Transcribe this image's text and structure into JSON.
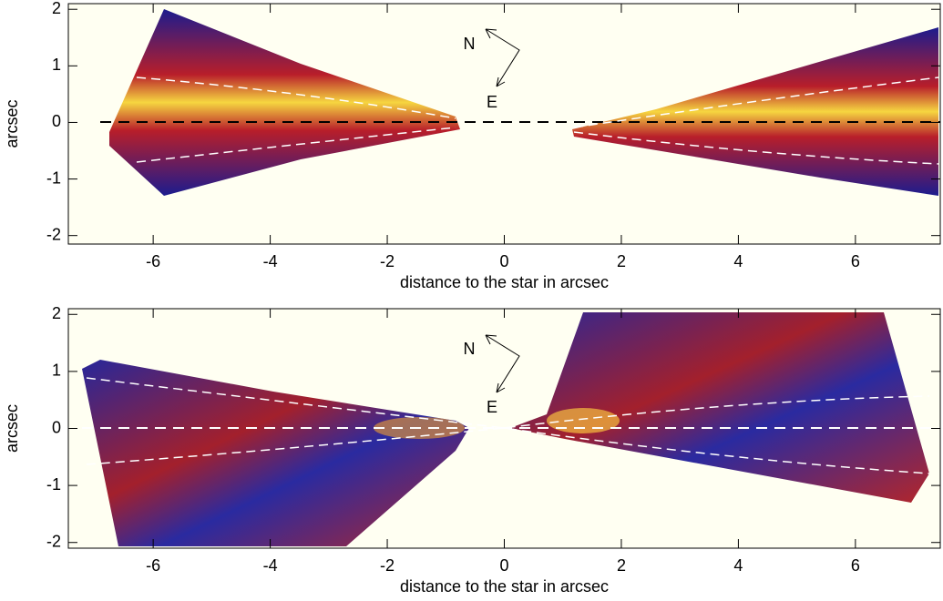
{
  "chart_data": [
    {
      "type": "image",
      "xlabel": "distance to the star in arcsec",
      "ylabel": "arcsec",
      "xlim": [
        -7.45,
        7.45
      ],
      "ylim": [
        -2.15,
        2.1
      ],
      "xticks": [
        -6,
        -4,
        -2,
        0,
        2,
        4,
        6
      ],
      "yticks": [
        -2,
        -1,
        0,
        1,
        2
      ],
      "annotations": [
        "N",
        "E"
      ]
    },
    {
      "type": "image",
      "xlabel": "distance to the star in arcsec",
      "ylabel": "arcsec",
      "xlim": [
        -7.45,
        7.45
      ],
      "ylim": [
        -2.1,
        2.1
      ],
      "xticks": [
        -6,
        -4,
        -2,
        0,
        2,
        4,
        6
      ],
      "yticks": [
        -2,
        -1,
        0,
        1,
        2
      ],
      "annotations": [
        "N",
        "E"
      ]
    }
  ]
}
